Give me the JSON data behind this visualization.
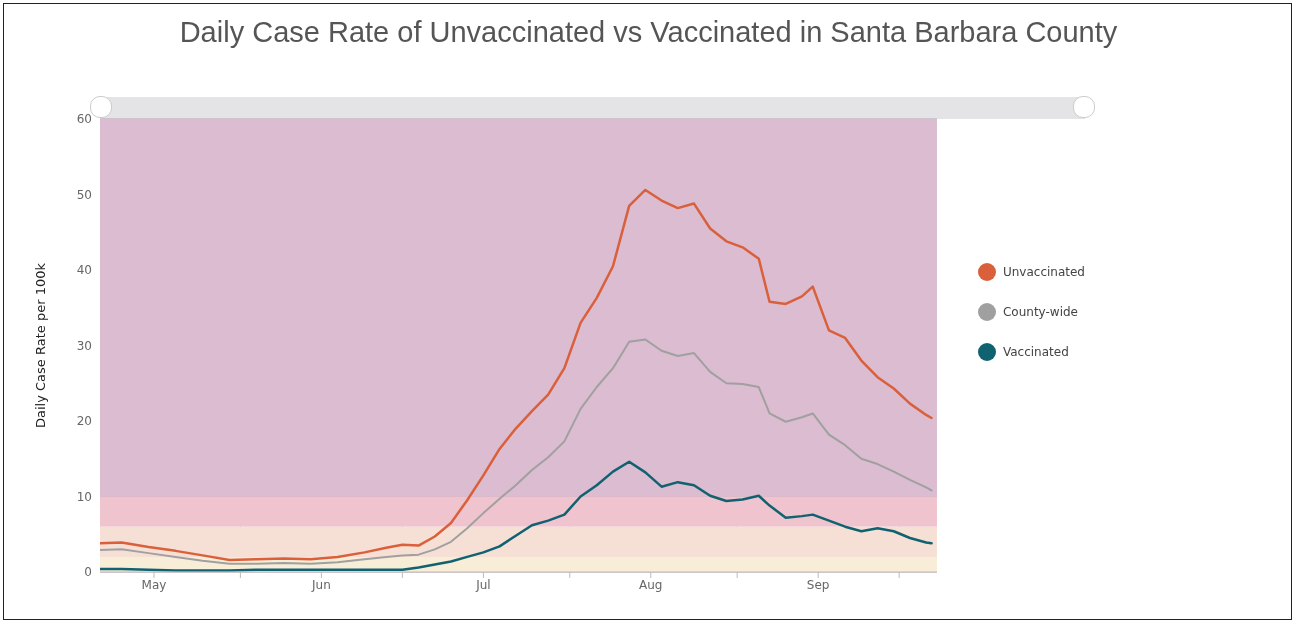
{
  "chart_data": {
    "type": "line",
    "title": "Daily Case Rate of Unvaccinated vs Vaccinated in Santa Barbara County",
    "ylabel": "Daily Case Rate per 100k",
    "x": [
      "--05-06",
      "--05-10",
      "--05-15",
      "--05-20",
      "--05-25",
      "--05-30",
      "--06-04",
      "--06-09",
      "--06-14",
      "--06-19",
      "--06-24",
      "--06-28",
      "--07-01",
      "--07-04",
      "--07-07",
      "--07-10",
      "--07-13",
      "--07-16",
      "--07-19",
      "--07-22",
      "--07-25",
      "--07-28",
      "--07-31",
      "--08-03",
      "--08-06",
      "--08-09",
      "--08-12",
      "--08-15",
      "--08-18",
      "--08-21",
      "--08-24",
      "--08-27",
      "--08-30",
      "--09-02",
      "--09-05",
      "--09-07",
      "--09-10",
      "--09-13",
      "--09-15",
      "--09-18",
      "--09-21",
      "--09-24",
      "--09-27",
      "--09-30",
      "--10-03",
      "--10-06",
      "--10-07"
    ],
    "series": [
      {
        "name": "Unvaccinated",
        "color": "#d9603b",
        "values": [
          3.8,
          3.9,
          3.3,
          2.8,
          2.2,
          1.6,
          1.7,
          1.8,
          1.7,
          2.0,
          2.6,
          3.2,
          3.6,
          3.5,
          4.7,
          6.5,
          9.5,
          12.8,
          16.3,
          19.0,
          21.3,
          23.5,
          27,
          33,
          36.3,
          40.5,
          48.5,
          50.6,
          49.2,
          48.2,
          48.8,
          45.5,
          43.8,
          43,
          41.5,
          35.8,
          35.5,
          36.5,
          37.8,
          32.0,
          31.0,
          28.0,
          25.8,
          24.3,
          22.3,
          20.8,
          20.4
        ]
      },
      {
        "name": "County-wide",
        "color": "#a0a0a0",
        "values": [
          2.9,
          3.0,
          2.5,
          2.0,
          1.5,
          1.1,
          1.1,
          1.2,
          1.1,
          1.3,
          1.7,
          2.0,
          2.2,
          2.3,
          3.0,
          4.0,
          5.8,
          7.8,
          9.7,
          11.5,
          13.5,
          15.2,
          17.3,
          21.6,
          24.5,
          27,
          30.5,
          30.8,
          29.3,
          28.6,
          29.0,
          26.5,
          25.0,
          24.9,
          24.5,
          21.0,
          19.9,
          20.5,
          21.0,
          18.2,
          16.8,
          15.0,
          14.3,
          13.3,
          12.2,
          11.2,
          10.8
        ]
      },
      {
        "name": "Vaccinated",
        "color": "#116270",
        "values": [
          0.4,
          0.4,
          0.3,
          0.2,
          0.2,
          0.2,
          0.3,
          0.3,
          0.3,
          0.3,
          0.3,
          0.3,
          0.3,
          0.6,
          1.0,
          1.4,
          2.0,
          2.6,
          3.4,
          4.8,
          6.2,
          6.8,
          7.6,
          10.0,
          11.5,
          13.3,
          14.6,
          13.2,
          11.3,
          11.9,
          11.5,
          10.1,
          9.4,
          9.6,
          10.1,
          8.8,
          7.2,
          7.4,
          7.6,
          6.8,
          6.0,
          5.4,
          5.8,
          5.4,
          4.5,
          3.9,
          3.8
        ]
      }
    ],
    "xlim": [
      "--05-06",
      "--10-08"
    ],
    "xticks": [
      {
        "value": "--05-16",
        "label": "May"
      },
      {
        "value": "--06-01",
        "label": null
      },
      {
        "value": "--06-16",
        "label": "Jun"
      },
      {
        "value": "--07-01",
        "label": null
      },
      {
        "value": "--07-16",
        "label": "Jul"
      },
      {
        "value": "--08-01",
        "label": null
      },
      {
        "value": "--08-16",
        "label": "Aug"
      },
      {
        "value": "--09-01",
        "label": null
      },
      {
        "value": "--09-16",
        "label": "Sep"
      },
      {
        "value": "--10-01",
        "label": null
      }
    ],
    "ylim": [
      0,
      60
    ],
    "yticks": [
      0,
      10,
      20,
      30,
      40,
      50,
      60
    ],
    "bands": [
      {
        "axis": "y",
        "from": 10,
        "to": 60,
        "color": "#dbbcd0"
      },
      {
        "axis": "y",
        "from": 6,
        "to": 10,
        "color": "#f0c4cf"
      },
      {
        "axis": "y",
        "from": 2,
        "to": 6,
        "color": "#f6e0d6"
      },
      {
        "axis": "y",
        "from": 0,
        "to": 2,
        "color": "#f8edd6"
      }
    ],
    "grid": true,
    "legend": "right",
    "marker": "none",
    "line_style": "solid"
  }
}
